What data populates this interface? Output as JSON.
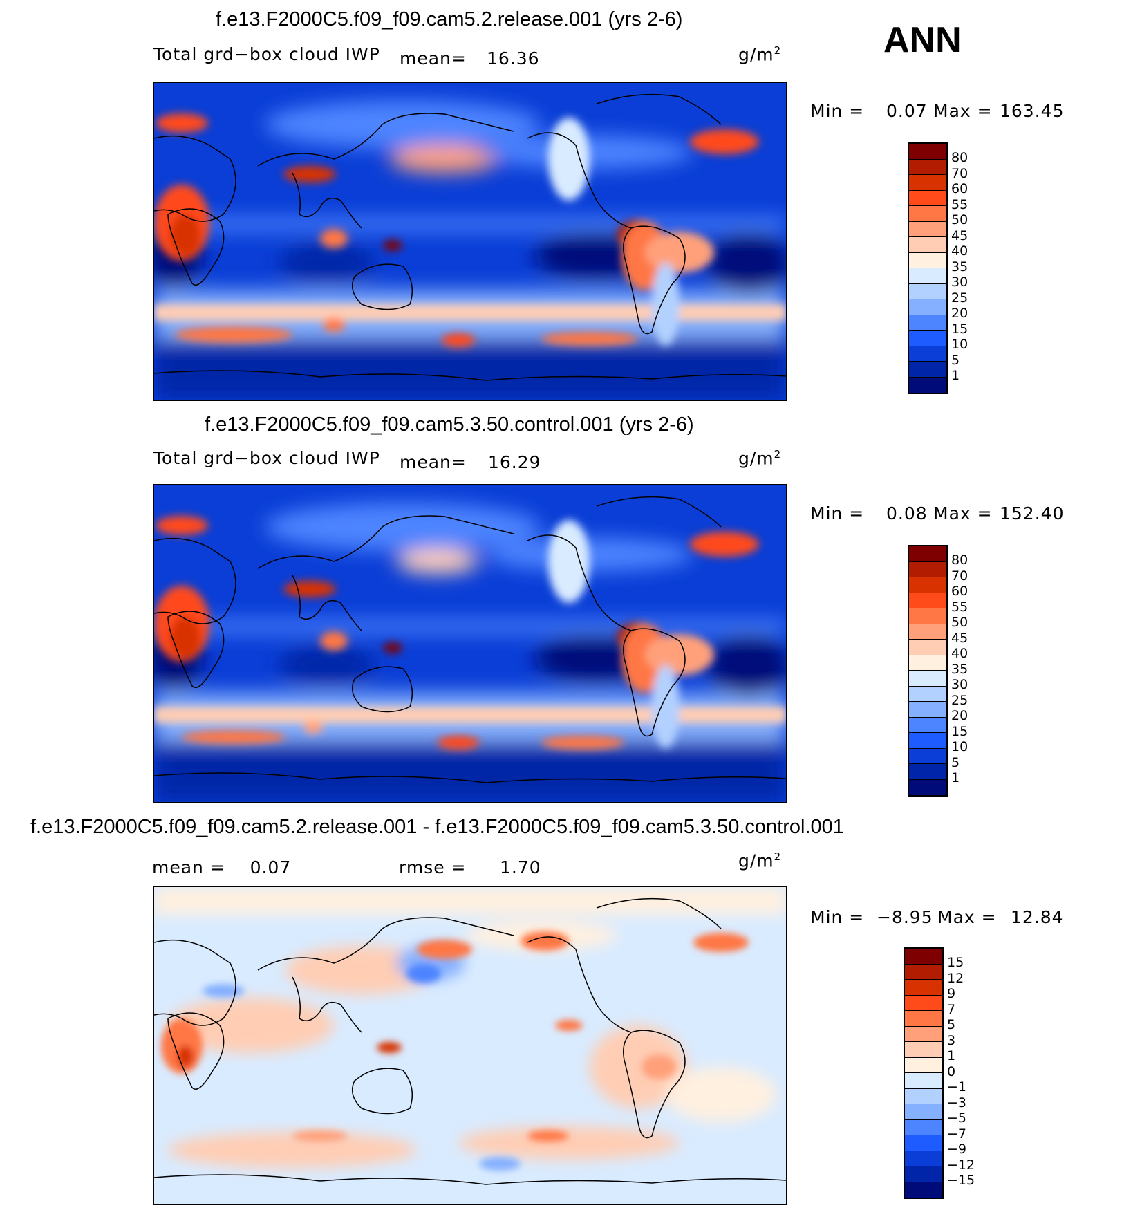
{
  "season": "ANN",
  "panels": [
    {
      "title": "f.e13.F2000C5.f09_f09.cam5.2.release.001 (yrs 2-6)",
      "left": "Total grd−box cloud IWP",
      "mid_label": "mean=",
      "mid_value": "16.36",
      "units": "g/m",
      "units_sup": "2",
      "min_label": "Min =",
      "min_value": "0.07",
      "max_label": "Max =",
      "max_value": "163.45",
      "cbar_labels": [
        "80",
        "70",
        "60",
        "55",
        "50",
        "45",
        "40",
        "35",
        "30",
        "25",
        "20",
        "15",
        "10",
        "5",
        "1"
      ],
      "cbar_colors": [
        "#7f0000",
        "#b21c00",
        "#d83200",
        "#ff4a1a",
        "#ff7744",
        "#ffa07a",
        "#ffcdb4",
        "#fff0e0",
        "#d9ebff",
        "#b3d1ff",
        "#85b0ff",
        "#4d84ff",
        "#1f5cff",
        "#0a3ed6",
        "#0025a8",
        "#000b7a"
      ]
    },
    {
      "title": "f.e13.F2000C5.f09_f09.cam5.3.50.control.001 (yrs 2-6)",
      "left": "Total grd−box cloud IWP",
      "mid_label": "mean=",
      "mid_value": "16.29",
      "units": "g/m",
      "units_sup": "2",
      "min_label": "Min =",
      "min_value": "0.08",
      "max_label": "Max =",
      "max_value": "152.40",
      "cbar_labels": [
        "80",
        "70",
        "60",
        "55",
        "50",
        "45",
        "40",
        "35",
        "30",
        "25",
        "20",
        "15",
        "10",
        "5",
        "1"
      ],
      "cbar_colors": [
        "#7f0000",
        "#b21c00",
        "#d83200",
        "#ff4a1a",
        "#ff7744",
        "#ffa07a",
        "#ffcdb4",
        "#fff0e0",
        "#d9ebff",
        "#b3d1ff",
        "#85b0ff",
        "#4d84ff",
        "#1f5cff",
        "#0a3ed6",
        "#0025a8",
        "#000b7a"
      ]
    },
    {
      "title": "f.e13.F2000C5.f09_f09.cam5.2.release.001 - f.e13.F2000C5.f09_f09.cam5.3.50.control.001",
      "left": "mean =    0.07",
      "mid_label": "rmse =",
      "mid_value": "1.70",
      "units": "g/m",
      "units_sup": "2",
      "min_label": "Min =",
      "min_value": "−8.95",
      "max_label": "Max =",
      "max_value": "12.84",
      "cbar_labels": [
        "15",
        "12",
        "9",
        "7",
        "5",
        "3",
        "1",
        "0",
        "−1",
        "−3",
        "−5",
        "−7",
        "−9",
        "−12",
        "−15"
      ],
      "cbar_colors": [
        "#7f0000",
        "#b21c00",
        "#d83200",
        "#ff4a1a",
        "#ff7744",
        "#ffa07a",
        "#ffcdb4",
        "#fff0e0",
        "#d9ebff",
        "#b3d1ff",
        "#85b0ff",
        "#4d84ff",
        "#1f5cff",
        "#0a3ed6",
        "#0025a8",
        "#000b7a"
      ]
    }
  ]
}
